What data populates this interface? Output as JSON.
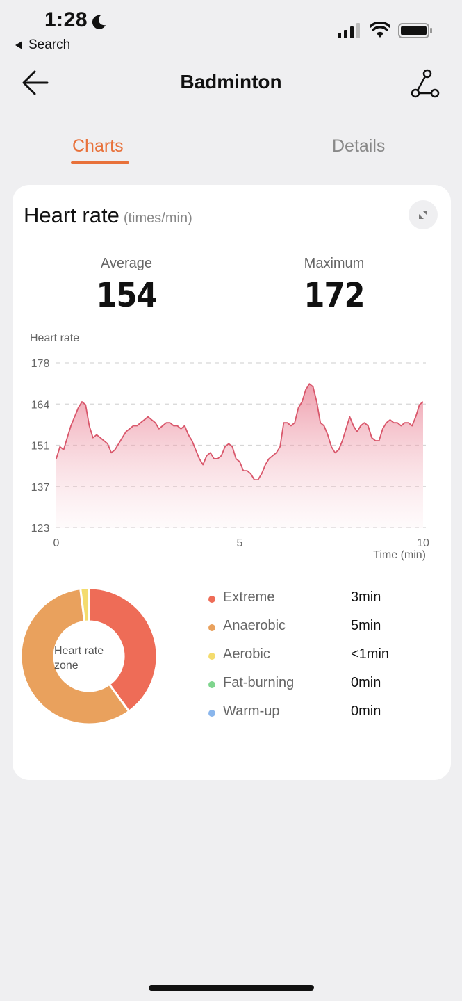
{
  "status_bar": {
    "time": "1:28",
    "back_label": "Search"
  },
  "header": {
    "title": "Badminton"
  },
  "tabs": [
    {
      "label": "Charts",
      "active": true
    },
    {
      "label": "Details",
      "active": false
    }
  ],
  "heart_rate_card": {
    "title": "Heart rate",
    "unit": "(times/min)",
    "average_label": "Average",
    "average_value": "154",
    "maximum_label": "Maximum",
    "maximum_value": "172"
  },
  "chart_data": {
    "type": "area",
    "title": "",
    "ylabel": "Heart rate",
    "xlabel": "Time (min)",
    "ylim": [
      123,
      178
    ],
    "xlim": [
      0,
      10
    ],
    "yticks": [
      "178",
      "164",
      "151",
      "137",
      "123"
    ],
    "xticks": [
      "0",
      "5",
      "10"
    ],
    "grid": true,
    "series": [
      {
        "color": "#d9576b",
        "x": [
          0,
          0.1,
          0.2,
          0.3,
          0.4,
          0.5,
          0.6,
          0.7,
          0.8,
          0.9,
          1.0,
          1.1,
          1.2,
          1.3,
          1.4,
          1.5,
          1.6,
          1.7,
          1.8,
          1.9,
          2.0,
          2.1,
          2.2,
          2.3,
          2.4,
          2.5,
          2.6,
          2.7,
          2.8,
          2.9,
          3.0,
          3.1,
          3.2,
          3.3,
          3.4,
          3.5,
          3.6,
          3.7,
          3.8,
          3.9,
          4.0,
          4.1,
          4.2,
          4.3,
          4.4,
          4.5,
          4.6,
          4.7,
          4.8,
          4.9,
          5.0,
          5.1,
          5.2,
          5.3,
          5.4,
          5.5,
          5.6,
          5.7,
          5.8,
          5.9,
          6.0,
          6.1,
          6.2,
          6.3,
          6.4,
          6.5,
          6.6,
          6.7,
          6.8,
          6.9,
          7.0,
          7.1,
          7.2,
          7.3,
          7.4,
          7.5,
          7.6,
          7.7,
          7.8,
          7.9,
          8.0,
          8.1,
          8.2,
          8.3,
          8.4,
          8.5,
          8.6,
          8.7,
          8.8,
          8.9,
          9.0,
          9.1,
          9.2,
          9.3,
          9.4,
          9.5,
          9.6,
          9.7,
          9.8,
          9.9,
          10.0
        ],
        "y": [
          146,
          150,
          149,
          153,
          157,
          160,
          163,
          165,
          164,
          157,
          153,
          154,
          153,
          152,
          151,
          148,
          149,
          151,
          153,
          155,
          156,
          157,
          157,
          158,
          159,
          160,
          159,
          158,
          156,
          157,
          158,
          158,
          157,
          157,
          156,
          157,
          154,
          152,
          149,
          146,
          144,
          147,
          148,
          146,
          146,
          147,
          150,
          151,
          150,
          146,
          145,
          142,
          142,
          141,
          139,
          139,
          141,
          144,
          146,
          147,
          148,
          150,
          158,
          158,
          157,
          158,
          163,
          165,
          169,
          171,
          170,
          165,
          158,
          157,
          154,
          150,
          148,
          149,
          152,
          156,
          160,
          157,
          155,
          157,
          158,
          157,
          153,
          152,
          152,
          156,
          158,
          159,
          158,
          158,
          157,
          158,
          158,
          157,
          160,
          164,
          165
        ]
      }
    ]
  },
  "heart_rate_zone": {
    "center_label": "Heart rate zone",
    "segments": [
      {
        "name": "Extreme",
        "value": "3min",
        "color": "#ee6c57",
        "share": 0.4
      },
      {
        "name": "Anaerobic",
        "value": "5min",
        "color": "#e9a15d",
        "share": 0.58
      },
      {
        "name": "Aerobic",
        "value": "<1min",
        "color": "#f4dc6e",
        "share": 0.02
      },
      {
        "name": "Fat-burning",
        "value": "0min",
        "color": "#7fd58e",
        "share": 0
      },
      {
        "name": "Warm-up",
        "value": "0min",
        "color": "#8ab6ec",
        "share": 0
      }
    ]
  }
}
